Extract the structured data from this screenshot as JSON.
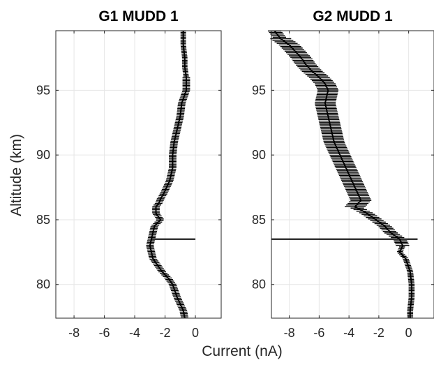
{
  "figure": {
    "xlabel": "Current (nA)",
    "ylabel": "Altitude (km)"
  },
  "chart_data": [
    {
      "type": "line",
      "title": "G1 MUDD 1",
      "xlabel": "Current (nA)",
      "ylabel": "Altitude (km)",
      "xlim": [
        -9.2,
        1.7
      ],
      "ylim": [
        77.4,
        99.6
      ],
      "xticks": [
        -8,
        -6,
        -4,
        -2,
        0
      ],
      "yticks": [
        80,
        85,
        90,
        95
      ],
      "grid": true,
      "line_color": "#000000",
      "series": [
        {
          "x": [
            -0.8,
            -0.8,
            -0.7,
            -0.7,
            -0.6,
            -0.6,
            -0.9,
            -1.0,
            -1.2,
            -1.4,
            -1.5,
            -1.5,
            -1.7,
            -1.9,
            -2.1,
            -2.3,
            -2.4,
            -2.6,
            -2.6,
            -2.3,
            -2.7,
            -2.8,
            -2.9,
            -3.0,
            -2.9,
            -2.8,
            -2.5,
            -2.2,
            -1.8,
            -1.5,
            -1.2,
            -0.8,
            -0.7
          ],
          "y": [
            99.6,
            98.5,
            97.5,
            96.8,
            96.0,
            95.0,
            94.0,
            93.0,
            92.0,
            91.0,
            90.0,
            89.0,
            88.0,
            87.5,
            87.0,
            86.6,
            86.3,
            86.0,
            85.5,
            85.0,
            84.5,
            84.0,
            83.5,
            83.0,
            82.5,
            82.0,
            81.5,
            81.0,
            80.5,
            80.0,
            79.0,
            78.0,
            77.4
          ]
        }
      ],
      "spike": {
        "altitude": 83.5,
        "x_from": -2.9,
        "x_to": 0.0
      }
    },
    {
      "type": "line",
      "title": "G2 MUDD 1",
      "xlabel": "Current (nA)",
      "ylabel": "Altitude (km)",
      "xlim": [
        -9.2,
        1.7
      ],
      "ylim": [
        77.4,
        99.6
      ],
      "xticks": [
        -8,
        -6,
        -4,
        -2,
        0
      ],
      "yticks": [
        80,
        85,
        90,
        95
      ],
      "grid": true,
      "line_color": "#000000",
      "series": [
        {
          "x": [
            -9.0,
            -8.6,
            -8.0,
            -7.6,
            -7.2,
            -6.9,
            -6.5,
            -6.0,
            -5.6,
            -5.4,
            -5.6,
            -5.4,
            -5.2,
            -5.0,
            -4.6,
            -4.2,
            -3.8,
            -3.4,
            -3.2,
            -3.6,
            -2.8,
            -2.2,
            -1.6,
            -1.2,
            -0.6,
            -0.4,
            -0.6,
            -0.2,
            0.1,
            0.2,
            0.2,
            0.1,
            0.1
          ],
          "y": [
            99.6,
            99.0,
            98.5,
            98.0,
            97.5,
            97.0,
            96.5,
            96.0,
            95.5,
            95.0,
            94.0,
            93.0,
            92.0,
            91.0,
            90.0,
            89.0,
            88.0,
            87.0,
            86.5,
            86.0,
            85.5,
            85.0,
            84.5,
            84.0,
            83.5,
            83.0,
            82.5,
            82.0,
            81.0,
            80.0,
            79.0,
            78.0,
            77.4
          ]
        }
      ],
      "spike": {
        "altitude": 83.5,
        "x_from": -9.2,
        "x_to": 0.6
      }
    }
  ]
}
